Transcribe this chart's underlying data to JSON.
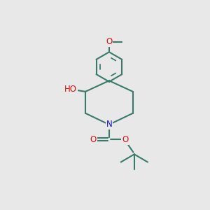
{
  "bg_color": "#e8e8e8",
  "bond_color": "#3a7a6a",
  "bond_width": 1.5,
  "atom_colors": {
    "O": "#dd1111",
    "N": "#1111cc",
    "C": "#3a7a6a"
  },
  "font_size": 8.5
}
